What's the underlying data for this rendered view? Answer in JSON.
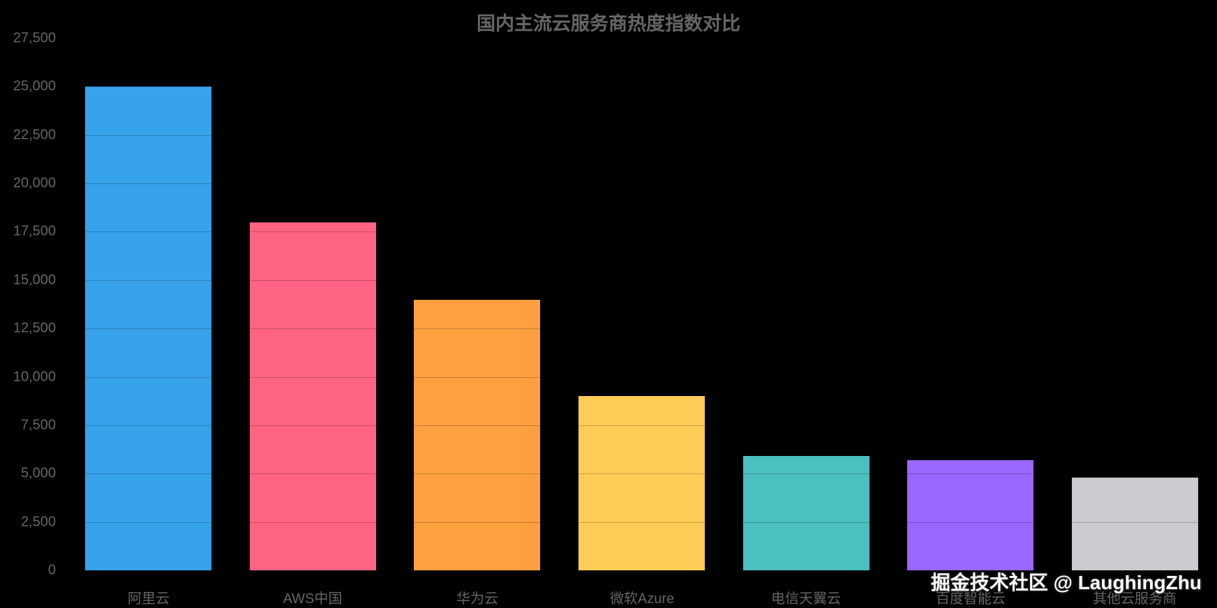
{
  "page": {
    "background_color": "#000000",
    "text_color": "#666666"
  },
  "chart_data": {
    "type": "bar",
    "title": "国内主流云服务商热度指数对比",
    "categories": [
      "阿里云",
      "AWS中国",
      "华为云",
      "微软Azure",
      "电信天翼云",
      "百度智能云",
      "其他云服务商"
    ],
    "values": [
      25000,
      18000,
      14000,
      9000,
      5900,
      5700,
      4800
    ],
    "bar_colors": [
      "#36A2EB",
      "#FF6384",
      "#FF9F40",
      "#FFCD56",
      "#4BC0C0",
      "#9966FF",
      "#C9CBCF"
    ],
    "xlabel": "",
    "ylabel": "",
    "ylim": [
      0,
      27500
    ],
    "y_tick_step": 2500,
    "y_tick_labels": [
      "0",
      "2,500",
      "5,000",
      "7,500",
      "10,000",
      "12,500",
      "15,000",
      "17,500",
      "20,000",
      "22,500",
      "25,000",
      "27,500"
    ],
    "grid": "horizontal",
    "legend_position": "none"
  },
  "watermark": {
    "text": "掘金技术社区 @ LaughingZhu",
    "color": "#ffffff"
  }
}
